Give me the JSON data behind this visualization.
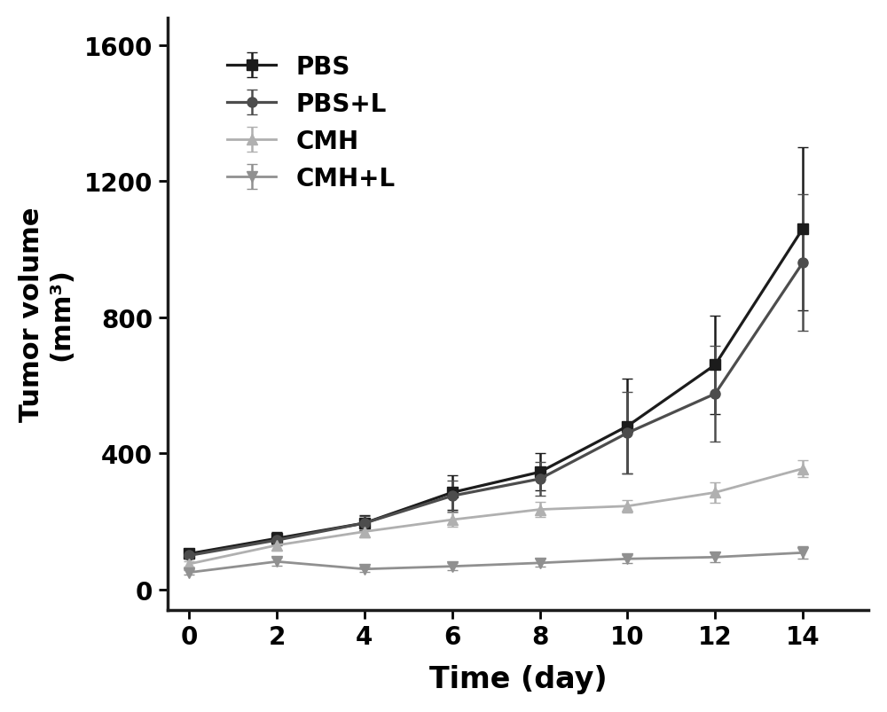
{
  "x": [
    0,
    2,
    4,
    6,
    8,
    10,
    12,
    14
  ],
  "PBS": {
    "y": [
      105,
      150,
      195,
      285,
      345,
      480,
      660,
      1060
    ],
    "yerr": [
      12,
      18,
      22,
      50,
      55,
      140,
      145,
      240
    ],
    "color": "#1c1c1c",
    "marker": "s",
    "label": "PBS",
    "linewidth": 2.3,
    "markersize": 8
  },
  "PBS_L": {
    "y": [
      100,
      145,
      195,
      275,
      325,
      460,
      575,
      960
    ],
    "yerr": [
      10,
      15,
      20,
      45,
      50,
      120,
      140,
      200
    ],
    "color": "#4d4d4d",
    "marker": "o",
    "label": "PBS+L",
    "linewidth": 2.3,
    "markersize": 8
  },
  "CMH": {
    "y": [
      75,
      130,
      170,
      205,
      235,
      245,
      285,
      355
    ],
    "yerr": [
      8,
      15,
      18,
      20,
      22,
      18,
      30,
      25
    ],
    "color": "#b0b0b0",
    "marker": "^",
    "label": "CMH",
    "linewidth": 2.0,
    "markersize": 8
  },
  "CMH_L": {
    "y": [
      50,
      82,
      60,
      68,
      78,
      90,
      95,
      108
    ],
    "yerr": [
      7,
      12,
      8,
      10,
      12,
      12,
      15,
      18
    ],
    "color": "#909090",
    "marker": "v",
    "label": "CMH+L",
    "linewidth": 2.0,
    "markersize": 8
  },
  "xlabel": "Time (day)",
  "ylabel": "Tumor volume\n(mm³)",
  "ylim": [
    -60,
    1680
  ],
  "xlim": [
    -0.5,
    15.5
  ],
  "yticks": [
    0,
    400,
    800,
    1200,
    1600
  ],
  "xticks": [
    0,
    2,
    4,
    6,
    8,
    10,
    12,
    14
  ],
  "xlabel_fontsize": 24,
  "ylabel_fontsize": 22,
  "tick_fontsize": 20,
  "legend_fontsize": 20,
  "background_color": "#ffffff",
  "spine_linewidth": 2.5
}
